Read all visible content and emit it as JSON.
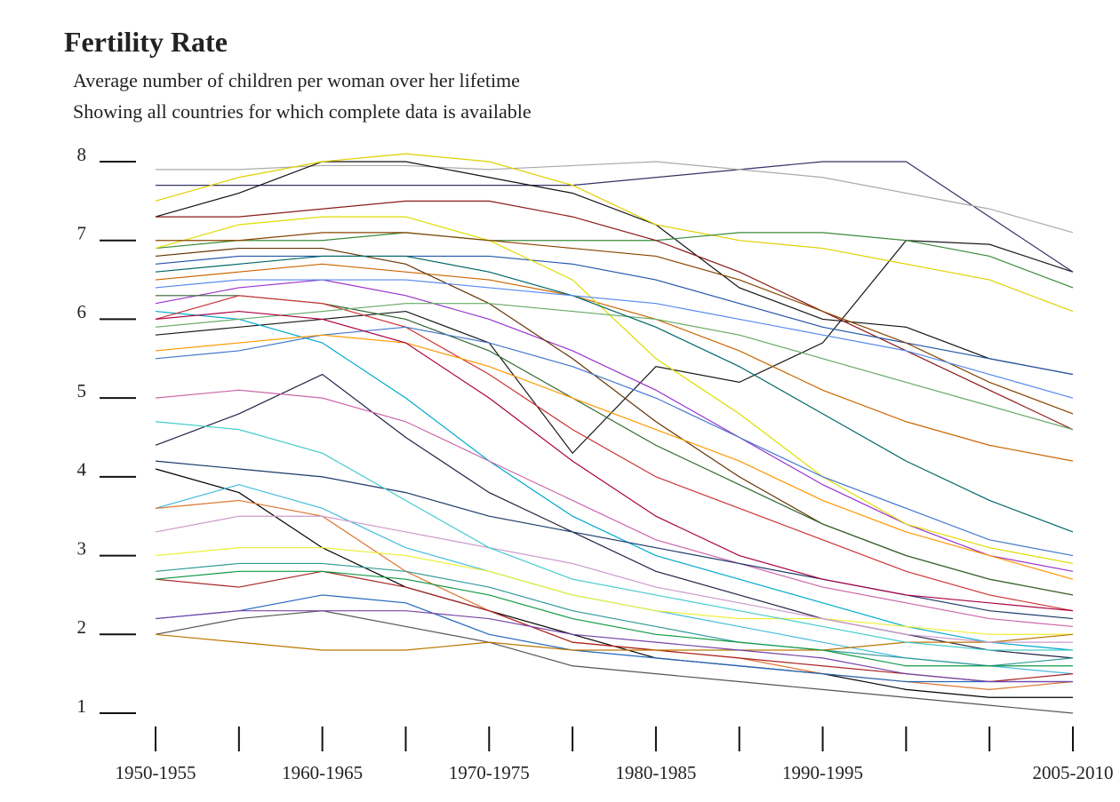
{
  "chart_data": {
    "type": "line",
    "title": "Fertility Rate",
    "subtitle": [
      "Average number of children per woman over her lifetime",
      "Showing all countries for which complete data is available"
    ],
    "categories": [
      "1950-1955",
      null,
      "1960-1965",
      null,
      "1970-1975",
      null,
      "1980-1985",
      null,
      "1990-1995",
      null,
      null,
      "2005-2010"
    ],
    "ylim": [
      1,
      8
    ],
    "yticks": [
      1,
      2,
      3,
      4,
      5,
      6,
      7,
      8
    ],
    "series": [
      {
        "color": "#1a1a1a",
        "values": [
          5.8,
          5.9,
          6.0,
          6.1,
          5.7,
          4.3,
          5.4,
          5.2,
          5.7,
          7.0,
          6.95,
          6.6
        ]
      },
      {
        "color": "#333366",
        "values": [
          7.7,
          7.7,
          7.7,
          7.7,
          7.7,
          7.7,
          7.8,
          7.9,
          8.0,
          8.0,
          7.3,
          6.6
        ]
      },
      {
        "color": "#aaaaaa",
        "values": [
          7.9,
          7.9,
          7.95,
          7.95,
          7.9,
          7.95,
          8.0,
          7.9,
          7.8,
          7.6,
          7.4,
          7.1
        ]
      },
      {
        "color": "#111111",
        "values": [
          7.3,
          7.6,
          8.0,
          8.0,
          7.8,
          7.6,
          7.2,
          6.4,
          6.0,
          5.9,
          5.5,
          5.3
        ]
      },
      {
        "color": "#e0d000",
        "values": [
          7.5,
          7.8,
          8.0,
          8.1,
          8.0,
          7.7,
          7.2,
          7.0,
          6.9,
          6.7,
          6.5,
          6.1
        ]
      },
      {
        "color": "#3a8a3a",
        "values": [
          6.9,
          7.0,
          7.0,
          7.1,
          7.0,
          7.0,
          7.0,
          7.1,
          7.1,
          7.0,
          6.8,
          6.4
        ]
      },
      {
        "color": "#8b1a1a",
        "values": [
          7.3,
          7.3,
          7.4,
          7.5,
          7.5,
          7.3,
          7.0,
          6.6,
          6.1,
          5.6,
          5.1,
          4.6
        ]
      },
      {
        "color": "#2255aa",
        "values": [
          6.7,
          6.8,
          6.8,
          6.8,
          6.8,
          6.7,
          6.5,
          6.2,
          5.9,
          5.7,
          5.5,
          5.3
        ]
      },
      {
        "color": "#cc6600",
        "values": [
          6.5,
          6.6,
          6.7,
          6.6,
          6.5,
          6.3,
          6.0,
          5.6,
          5.1,
          4.7,
          4.4,
          4.2
        ]
      },
      {
        "color": "#9933cc",
        "values": [
          6.2,
          6.4,
          6.5,
          6.3,
          6.0,
          5.6,
          5.1,
          4.5,
          3.9,
          3.4,
          3.0,
          2.8
        ]
      },
      {
        "color": "#00aacc",
        "values": [
          6.1,
          6.0,
          5.7,
          5.0,
          4.2,
          3.5,
          3.0,
          2.7,
          2.4,
          2.1,
          1.9,
          1.8
        ]
      },
      {
        "color": "#663300",
        "values": [
          6.8,
          6.9,
          6.9,
          6.7,
          6.2,
          5.5,
          4.7,
          4.0,
          3.4,
          3.0,
          2.7,
          2.5
        ]
      },
      {
        "color": "#336633",
        "values": [
          6.3,
          6.3,
          6.2,
          6.0,
          5.6,
          5.0,
          4.4,
          3.9,
          3.4,
          3.0,
          2.7,
          2.5
        ]
      },
      {
        "color": "#cc3333",
        "values": [
          6.0,
          6.3,
          6.2,
          5.9,
          5.3,
          4.6,
          4.0,
          3.6,
          3.2,
          2.8,
          2.5,
          2.3
        ]
      },
      {
        "color": "#dddd00",
        "values": [
          6.9,
          7.2,
          7.3,
          7.3,
          7.0,
          6.5,
          5.5,
          4.8,
          4.0,
          3.4,
          3.1,
          2.9
        ]
      },
      {
        "color": "#4477cc",
        "values": [
          5.5,
          5.6,
          5.8,
          5.9,
          5.7,
          5.4,
          5.0,
          4.5,
          4.0,
          3.6,
          3.2,
          3.0
        ]
      },
      {
        "color": "#222244",
        "values": [
          4.4,
          4.8,
          5.3,
          4.5,
          3.8,
          3.3,
          2.8,
          2.5,
          2.2,
          2.0,
          1.8,
          1.7
        ]
      },
      {
        "color": "#66aa66",
        "values": [
          5.9,
          6.0,
          6.1,
          6.2,
          6.2,
          6.1,
          6.0,
          5.8,
          5.5,
          5.2,
          4.9,
          4.6
        ]
      },
      {
        "color": "#cc66aa",
        "values": [
          5.0,
          5.1,
          5.0,
          4.7,
          4.2,
          3.7,
          3.2,
          2.9,
          2.6,
          2.4,
          2.2,
          2.1
        ]
      },
      {
        "color": "#000000",
        "values": [
          4.1,
          3.8,
          3.1,
          2.6,
          2.3,
          2.0,
          1.7,
          1.6,
          1.5,
          1.3,
          1.2,
          1.2
        ]
      },
      {
        "color": "#44bbdd",
        "values": [
          3.6,
          3.9,
          3.6,
          3.1,
          2.8,
          2.5,
          2.3,
          2.1,
          1.9,
          1.7,
          1.6,
          1.5
        ]
      },
      {
        "color": "#dd7733",
        "values": [
          3.6,
          3.7,
          3.5,
          2.8,
          2.3,
          1.9,
          1.8,
          1.7,
          1.5,
          1.4,
          1.3,
          1.4
        ]
      },
      {
        "color": "#eeee33",
        "values": [
          3.0,
          3.1,
          3.1,
          3.0,
          2.8,
          2.5,
          2.3,
          2.2,
          2.2,
          2.1,
          2.0,
          2.0
        ]
      },
      {
        "color": "#339999",
        "values": [
          2.8,
          2.9,
          2.9,
          2.8,
          2.6,
          2.3,
          2.1,
          1.9,
          1.8,
          1.7,
          1.6,
          1.7
        ]
      },
      {
        "color": "#aa2222",
        "values": [
          2.7,
          2.6,
          2.8,
          2.6,
          2.3,
          1.9,
          1.8,
          1.7,
          1.6,
          1.5,
          1.4,
          1.5
        ]
      },
      {
        "color": "#2266bb",
        "values": [
          2.2,
          2.3,
          2.5,
          2.4,
          2.0,
          1.8,
          1.7,
          1.6,
          1.5,
          1.4,
          1.4,
          1.4
        ]
      },
      {
        "color": "#555555",
        "values": [
          2.0,
          2.2,
          2.3,
          2.1,
          1.9,
          1.6,
          1.5,
          1.4,
          1.3,
          1.2,
          1.1,
          1.0
        ]
      },
      {
        "color": "#bb7700",
        "values": [
          2.0,
          1.9,
          1.8,
          1.8,
          1.9,
          1.8,
          1.8,
          1.8,
          1.8,
          1.9,
          1.9,
          2.0
        ]
      },
      {
        "color": "#7744aa",
        "values": [
          2.2,
          2.3,
          2.3,
          2.3,
          2.2,
          2.0,
          1.9,
          1.8,
          1.7,
          1.5,
          1.4,
          1.4
        ]
      },
      {
        "color": "#119944",
        "values": [
          2.7,
          2.8,
          2.8,
          2.7,
          2.5,
          2.2,
          2.0,
          1.9,
          1.8,
          1.6,
          1.6,
          1.6
        ]
      },
      {
        "color": "#cc99cc",
        "values": [
          3.3,
          3.5,
          3.5,
          3.3,
          3.1,
          2.9,
          2.6,
          2.4,
          2.2,
          2.0,
          1.9,
          1.9
        ]
      },
      {
        "color": "#1a3a6a",
        "values": [
          4.2,
          4.1,
          4.0,
          3.8,
          3.5,
          3.3,
          3.1,
          2.9,
          2.7,
          2.5,
          2.3,
          2.2
        ]
      },
      {
        "color": "#ff9900",
        "values": [
          5.6,
          5.7,
          5.8,
          5.7,
          5.4,
          5.0,
          4.6,
          4.2,
          3.7,
          3.3,
          3.0,
          2.7
        ]
      },
      {
        "color": "#006666",
        "values": [
          6.6,
          6.7,
          6.8,
          6.8,
          6.6,
          6.3,
          5.9,
          5.4,
          4.8,
          4.2,
          3.7,
          3.3
        ]
      },
      {
        "color": "#884400",
        "values": [
          7.0,
          7.0,
          7.1,
          7.1,
          7.0,
          6.9,
          6.8,
          6.5,
          6.1,
          5.7,
          5.2,
          4.8
        ]
      },
      {
        "color": "#5588ee",
        "values": [
          6.4,
          6.5,
          6.5,
          6.5,
          6.4,
          6.3,
          6.2,
          6.0,
          5.8,
          5.6,
          5.3,
          5.0
        ]
      },
      {
        "color": "#aa0044",
        "values": [
          6.0,
          6.1,
          6.0,
          5.7,
          5.0,
          4.2,
          3.5,
          3.0,
          2.7,
          2.5,
          2.4,
          2.3
        ]
      },
      {
        "color": "#44cccc",
        "values": [
          4.7,
          4.6,
          4.3,
          3.7,
          3.1,
          2.7,
          2.5,
          2.3,
          2.1,
          1.9,
          1.8,
          1.8
        ]
      }
    ]
  }
}
